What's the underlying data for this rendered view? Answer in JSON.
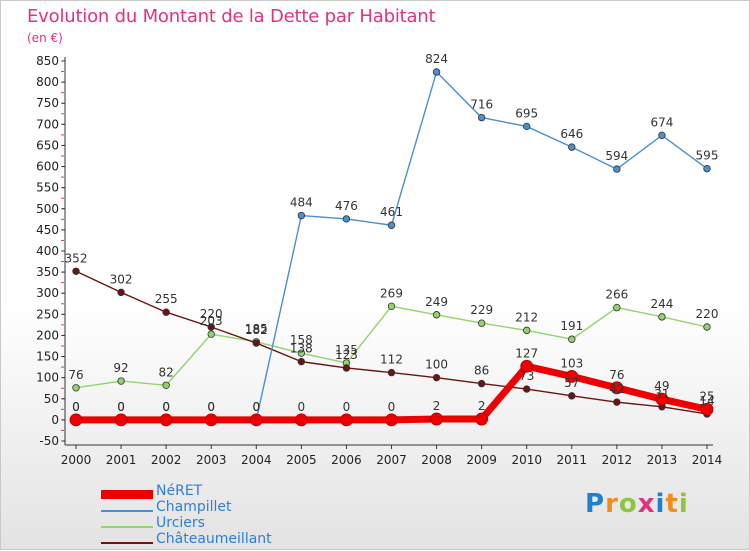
{
  "header": {
    "title": "Evolution du Montant de la Dette par Habitant",
    "subtitle": "(en €)"
  },
  "logo": {
    "text": "Proxiti",
    "colors": [
      "#1f7fd1",
      "#f28c1a",
      "#8cc63f",
      "#e0327e",
      "#1f7fd1",
      "#f28c1a",
      "#8cc63f"
    ]
  },
  "chart_data": {
    "type": "line",
    "x": [
      2000,
      2001,
      2002,
      2003,
      2004,
      2005,
      2006,
      2007,
      2008,
      2009,
      2010,
      2011,
      2012,
      2013,
      2014
    ],
    "ylim": [
      -50,
      850
    ],
    "yticks": [
      -50,
      0,
      50,
      100,
      150,
      200,
      250,
      300,
      350,
      400,
      450,
      500,
      550,
      600,
      650,
      700,
      750,
      800,
      850
    ],
    "grid": false,
    "legend_position": "bottom-left",
    "series": [
      {
        "name": "NéRET",
        "color": "#ee0000",
        "values": [
          0,
          0,
          0,
          0,
          0,
          0,
          0,
          0,
          2,
          2,
          127,
          103,
          76,
          49,
          25
        ],
        "labels": [
          "0",
          "0",
          "0",
          "0",
          "0",
          "0",
          "0",
          "0",
          "2",
          "2",
          "127",
          "103",
          "76",
          "49",
          "25"
        ]
      },
      {
        "name": "Champillet",
        "color": "#4a8fd0",
        "values": [
          0,
          0,
          0,
          0,
          0,
          484,
          476,
          461,
          824,
          716,
          695,
          646,
          594,
          674,
          595
        ],
        "labels": [
          "0",
          "0",
          "0",
          "0",
          "0",
          "484",
          "476",
          "461",
          "824",
          "716",
          "695",
          "646",
          "594",
          "674",
          "595"
        ]
      },
      {
        "name": "Urciers",
        "color": "#92d36a",
        "values": [
          76,
          92,
          82,
          203,
          185,
          158,
          135,
          269,
          249,
          229,
          212,
          191,
          266,
          244,
          220
        ],
        "labels": [
          "76",
          "92",
          "82",
          "203",
          "185",
          "158",
          "135",
          "269",
          "249",
          "229",
          "212",
          "191",
          "266",
          "244",
          "220"
        ]
      },
      {
        "name": "Châteaumeillant",
        "color": "#6b1414",
        "values": [
          352,
          302,
          255,
          220,
          182,
          138,
          123,
          112,
          100,
          86,
          73,
          57,
          42,
          31,
          14
        ],
        "labels": [
          "352",
          "302",
          "255",
          "220",
          "182",
          "138",
          "123",
          "112",
          "100",
          "86",
          "73",
          "57",
          "42",
          "31",
          "14"
        ]
      }
    ]
  }
}
